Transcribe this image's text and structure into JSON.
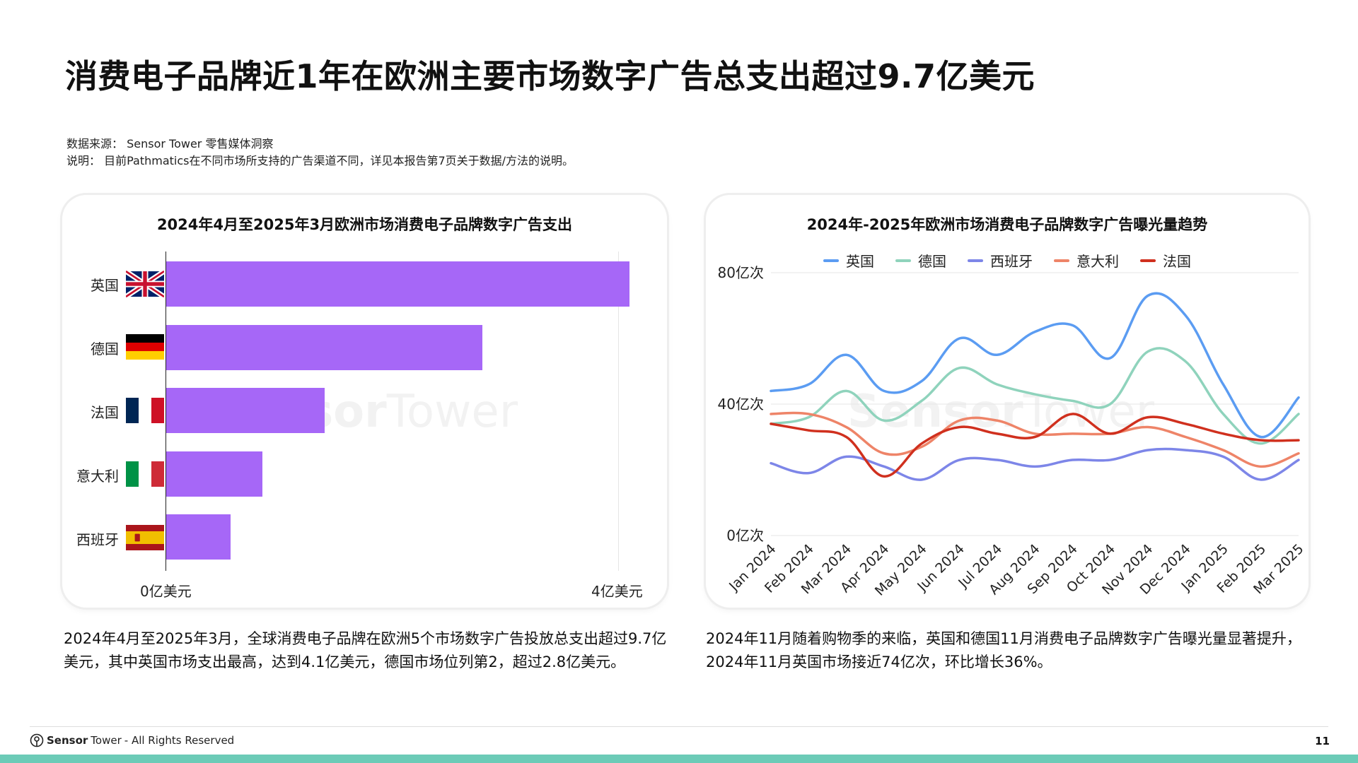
{
  "header": {
    "title": "消费电子品牌近1年在欧洲主要市场数字广告总支出超过9.7亿美元",
    "source": "数据来源：  Sensor Tower 零售媒体洞察",
    "note": "说明：  目前Pathmatics在不同市场所支持的广告渠道不同，详见本报告第7页关于数据/方法的说明。"
  },
  "chart_data": [
    {
      "type": "bar",
      "orientation": "horizontal",
      "title": "2024年4月至2025年3月欧洲市场消费电子品牌数字广告支出",
      "categories": [
        "英国",
        "德国",
        "法国",
        "意大利",
        "西班牙"
      ],
      "values": [
        4.1,
        2.8,
        1.4,
        0.85,
        0.57
      ],
      "unit": "亿美元",
      "xlim": [
        0,
        4.2
      ],
      "xticks": [
        0,
        4
      ],
      "xtick_labels": [
        "0亿美元",
        "4亿美元"
      ],
      "color": "#a667f7"
    },
    {
      "type": "line",
      "title": "2024年-2025年欧洲市场消费电子品牌数字广告曝光量趋势",
      "x": [
        "Jan 2024",
        "Feb 2024",
        "Mar 2024",
        "Apr 2024",
        "May 2024",
        "Jun 2024",
        "Jul 2024",
        "Aug 2024",
        "Sep 2024",
        "Oct 2024",
        "Nov 2024",
        "Dec 2024",
        "Jan 2025",
        "Feb 2025",
        "Mar 2025"
      ],
      "ylim": [
        0,
        80
      ],
      "yticks": [
        0,
        40,
        80
      ],
      "ytick_labels": [
        "0亿次",
        "40亿次",
        "80亿次"
      ],
      "legend_position": "top",
      "series": [
        {
          "name": "英国",
          "color": "#5b9cf2",
          "values": [
            44,
            46,
            55,
            44,
            47,
            60,
            55,
            62,
            64,
            54,
            73,
            67,
            46,
            30,
            42
          ]
        },
        {
          "name": "德国",
          "color": "#8fd3bc",
          "values": [
            34,
            36,
            44,
            35,
            41,
            51,
            46,
            43,
            41,
            40,
            56,
            53,
            37,
            28,
            37
          ]
        },
        {
          "name": "西班牙",
          "color": "#7d86e8",
          "values": [
            22,
            19,
            24,
            21,
            17,
            23,
            23,
            21,
            23,
            23,
            26,
            26,
            24,
            17,
            23
          ]
        },
        {
          "name": "意大利",
          "color": "#ee8468",
          "values": [
            37,
            37,
            33,
            25,
            27,
            35,
            35,
            31,
            31,
            31,
            33,
            30,
            26,
            21,
            25
          ]
        },
        {
          "name": "法国",
          "color": "#d0301e",
          "values": [
            34,
            32,
            30,
            18,
            28,
            33,
            31,
            30,
            37,
            31,
            36,
            34,
            31,
            29,
            29
          ]
        }
      ]
    }
  ],
  "captions": {
    "left": "2024年4月至2025年3月，全球消费电子品牌在欧洲5个市场数字广告投放总支出超过9.7亿美元，其中英国市场支出最高，达到4.1亿美元，德国市场位列第2，超过2.8亿美元。",
    "right": "2024年11月随着购物季的来临，英国和德国11月消费电子品牌数字广告曝光量显著提升，2024年11月英国市场接近74亿次，环比增长36%。"
  },
  "watermark": {
    "brand_bold": "Sensor",
    "brand_light": "Tower"
  },
  "footer": {
    "brand_bold": "Sensor",
    "brand_light": "Tower",
    "rights": " - All Rights Reserved",
    "page": "11"
  }
}
